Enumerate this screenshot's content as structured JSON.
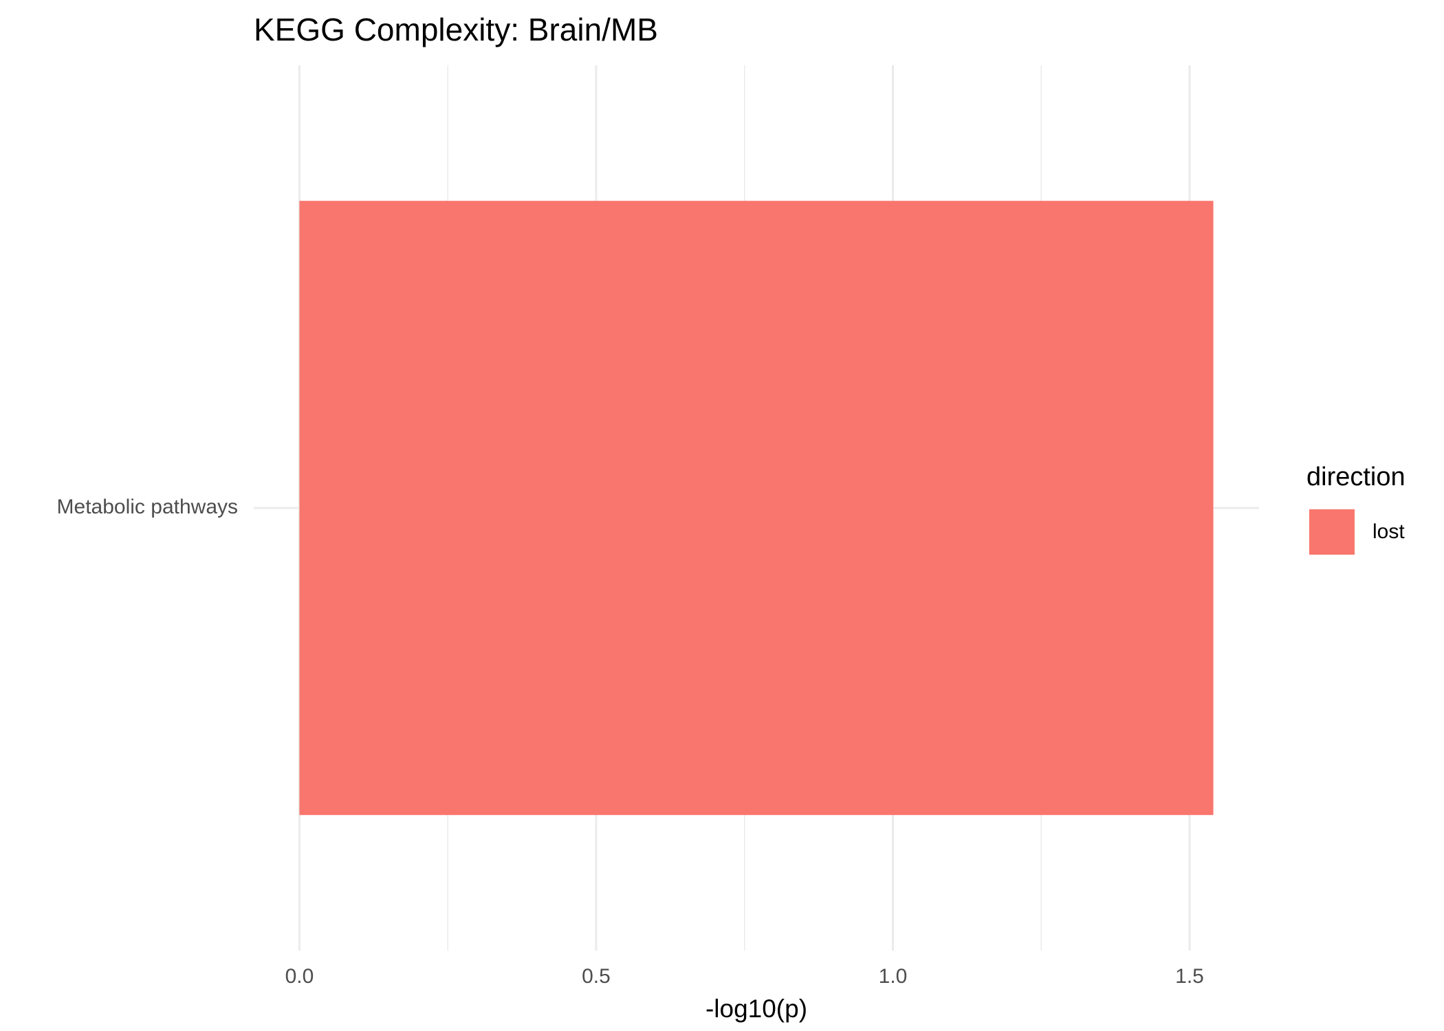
{
  "chart_data": {
    "type": "bar",
    "orientation": "horizontal",
    "title": "KEGG Complexity: Brain/MB",
    "xlabel": "-log10(p)",
    "categories": [
      "Metabolic pathways"
    ],
    "series": [
      {
        "name": "lost",
        "color": "#f8766d",
        "values": [
          1.54
        ]
      }
    ],
    "legend_title": "direction",
    "legend_position": "right",
    "xlim": [
      -0.077,
      1.617
    ],
    "xticks": [
      {
        "value": 0,
        "label": "0.0"
      },
      0.5,
      {
        "value": 1,
        "label": "1.0"
      },
      1.5
    ],
    "minor_xticks": [
      0.25,
      0.75,
      1.25
    ],
    "grid": true
  }
}
